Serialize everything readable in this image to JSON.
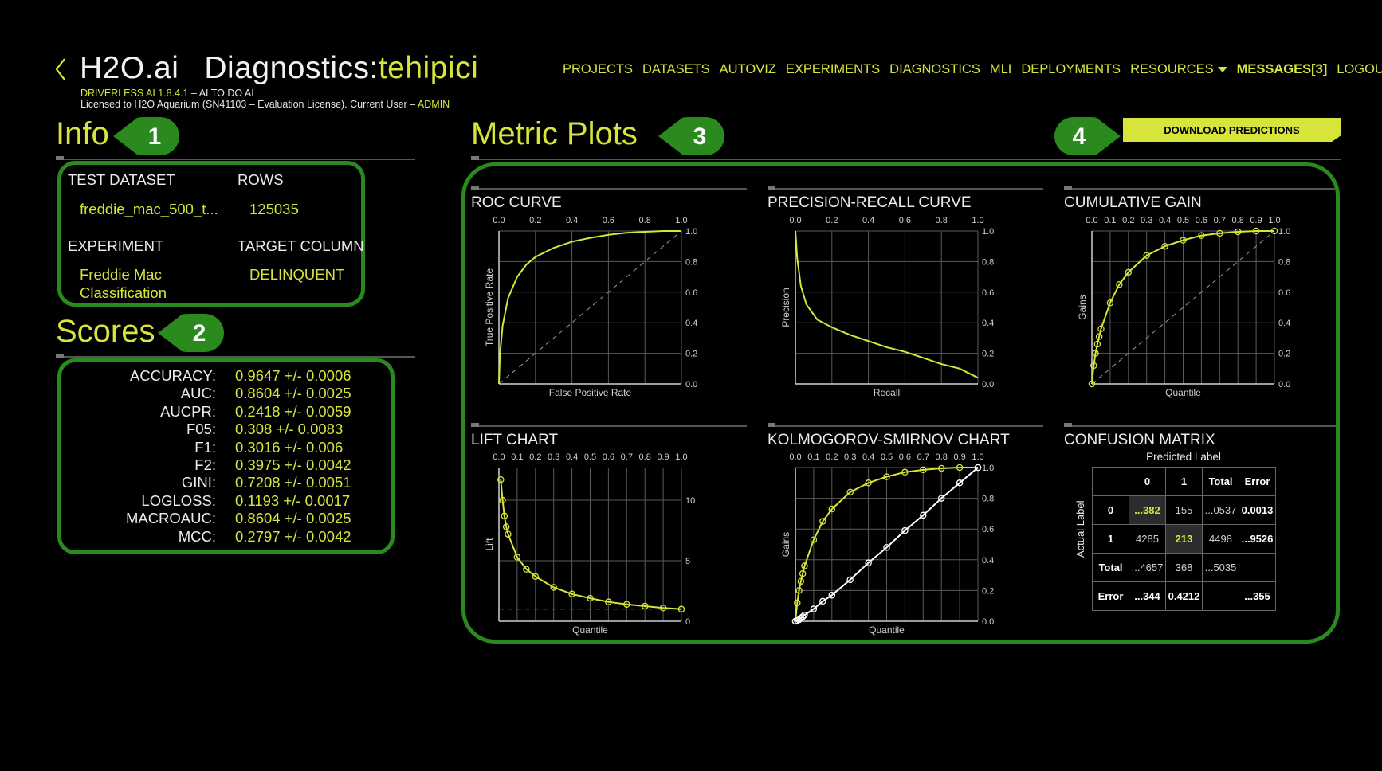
{
  "header": {
    "brand": "H2O.ai",
    "page_prefix": "Diagnostics:",
    "page_name": "tehipici",
    "version_line": "DRIVERLESS AI 1.8.4.1",
    "version_tagline": " – AI TO DO AI",
    "license_line": "Licensed to H2O Aquarium (SN41103 – Evaluation License). Current User – ",
    "user": "ADMIN"
  },
  "nav": {
    "items": [
      "PROJECTS",
      "DATASETS",
      "AUTOVIZ",
      "EXPERIMENTS",
      "DIAGNOSTICS",
      "MLI",
      "DEPLOYMENTS"
    ],
    "resources": "RESOURCES",
    "messages": "MESSAGES[3]",
    "logout": "LOGOUT"
  },
  "callouts": [
    "1",
    "2",
    "3",
    "4"
  ],
  "info": {
    "title": "Info",
    "test_dataset_label": "TEST DATASET",
    "test_dataset_value": "freddie_mac_500_t...",
    "rows_label": "ROWS",
    "rows_value": "125035",
    "experiment_label": "EXPERIMENT",
    "experiment_value_line1": "Freddie Mac",
    "experiment_value_line2": "Classification",
    "target_label": "TARGET COLUMN",
    "target_value": "DELINQUENT"
  },
  "scores": {
    "title": "Scores",
    "rows": [
      {
        "name": "ACCURACY:",
        "value": "0.9647 +/- 0.0006"
      },
      {
        "name": "AUC:",
        "value": "0.8604 +/- 0.0025"
      },
      {
        "name": "AUCPR:",
        "value": "0.2418 +/- 0.0059"
      },
      {
        "name": "F05:",
        "value": "0.308 +/- 0.0083"
      },
      {
        "name": "F1:",
        "value": "0.3016 +/- 0.006"
      },
      {
        "name": "F2:",
        "value": "0.3975 +/- 0.0042"
      },
      {
        "name": "GINI:",
        "value": "0.7208 +/- 0.0051"
      },
      {
        "name": "LOGLOSS:",
        "value": "0.1193 +/- 0.0017"
      },
      {
        "name": "MACROAUC:",
        "value": "0.8604 +/- 0.0025"
      },
      {
        "name": "MCC:",
        "value": "0.2797 +/- 0.0042"
      }
    ]
  },
  "metric_plots": {
    "title": "Metric Plots",
    "download_label": "DOWNLOAD PREDICTIONS"
  },
  "colors": {
    "accent": "#d7e43a",
    "callout_green": "#2a8a1e",
    "background": "#000000"
  },
  "chart_data": [
    {
      "type": "line",
      "title": "ROC CURVE",
      "xlabel": "False Positive Rate",
      "ylabel": "True Positive Rate",
      "xlim": [
        0,
        1
      ],
      "ylim": [
        0,
        1
      ],
      "x_ticks": [
        "0.0",
        "0.2",
        "0.4",
        "0.6",
        "0.8",
        "1.0"
      ],
      "y_ticks": [
        "0.0",
        "0.2",
        "0.4",
        "0.6",
        "0.8",
        "1.0"
      ],
      "series": [
        {
          "x": [
            0,
            0.005,
            0.02,
            0.05,
            0.1,
            0.15,
            0.2,
            0.3,
            0.4,
            0.5,
            0.6,
            0.7,
            0.8,
            0.9,
            1.0
          ],
          "y": [
            0,
            0.18,
            0.38,
            0.56,
            0.7,
            0.78,
            0.83,
            0.89,
            0.93,
            0.955,
            0.975,
            0.988,
            0.995,
            1.0,
            1.0
          ]
        }
      ],
      "diagonal": true
    },
    {
      "type": "line",
      "title": "PRECISION-RECALL CURVE",
      "xlabel": "Recall",
      "ylabel": "Precision",
      "xlim": [
        0,
        1
      ],
      "ylim": [
        0,
        1
      ],
      "x_ticks": [
        "0.0",
        "0.2",
        "0.4",
        "0.6",
        "0.8",
        "1.0"
      ],
      "y_ticks": [
        "0.0",
        "0.2",
        "0.4",
        "0.6",
        "0.8",
        "1.0"
      ],
      "series": [
        {
          "x": [
            0,
            0.01,
            0.03,
            0.06,
            0.12,
            0.2,
            0.3,
            0.4,
            0.5,
            0.6,
            0.7,
            0.8,
            0.9,
            1.0
          ],
          "y": [
            1.0,
            0.82,
            0.64,
            0.52,
            0.42,
            0.37,
            0.32,
            0.28,
            0.24,
            0.21,
            0.17,
            0.13,
            0.1,
            0.04
          ]
        }
      ]
    },
    {
      "type": "line",
      "title": "CUMULATIVE GAIN",
      "xlabel": "Quantile",
      "ylabel": "Gains",
      "xlim": [
        0,
        1
      ],
      "ylim": [
        0,
        1
      ],
      "x_ticks": [
        "0.0",
        "0.1",
        "0.2",
        "0.3",
        "0.4",
        "0.5",
        "0.6",
        "0.7",
        "0.8",
        "0.9",
        "1.0"
      ],
      "y_ticks": [
        "0.0",
        "0.2",
        "0.4",
        "0.6",
        "0.8",
        "1.0"
      ],
      "series": [
        {
          "x": [
            0,
            0.01,
            0.02,
            0.03,
            0.04,
            0.05,
            0.1,
            0.15,
            0.2,
            0.3,
            0.4,
            0.5,
            0.6,
            0.7,
            0.8,
            0.9,
            1.0
          ],
          "y": [
            0,
            0.12,
            0.2,
            0.26,
            0.31,
            0.36,
            0.53,
            0.65,
            0.73,
            0.84,
            0.9,
            0.94,
            0.97,
            0.985,
            0.995,
            1.0,
            1.0
          ]
        }
      ],
      "diagonal": true
    },
    {
      "type": "line",
      "title": "LIFT CHART",
      "xlabel": "Quantile",
      "ylabel": "Lift",
      "xlim": [
        0,
        1
      ],
      "ylim": [
        0,
        12.7
      ],
      "x_ticks": [
        "0.0",
        "0.1",
        "0.2",
        "0.3",
        "0.4",
        "0.5",
        "0.6",
        "0.7",
        "0.8",
        "0.9",
        "1.0"
      ],
      "y_ticks": [
        "0",
        "5",
        "10"
      ],
      "series": [
        {
          "x": [
            0.01,
            0.02,
            0.03,
            0.04,
            0.05,
            0.1,
            0.15,
            0.2,
            0.3,
            0.4,
            0.5,
            0.6,
            0.7,
            0.8,
            0.9,
            1.0
          ],
          "y": [
            11.7,
            10.0,
            8.7,
            7.8,
            7.2,
            5.3,
            4.3,
            3.7,
            2.8,
            2.25,
            1.9,
            1.6,
            1.4,
            1.25,
            1.1,
            1.0
          ]
        }
      ],
      "baseline": 1
    },
    {
      "type": "line",
      "title": "KOLMOGOROV-SMIRNOV CHART",
      "xlabel": "Quantile",
      "ylabel": "Gains",
      "xlim": [
        0,
        1
      ],
      "ylim": [
        0,
        1
      ],
      "x_ticks": [
        "0.0",
        "0.1",
        "0.2",
        "0.3",
        "0.4",
        "0.5",
        "0.6",
        "0.7",
        "0.8",
        "0.9",
        "1.0"
      ],
      "y_ticks": [
        "0.0",
        "0.2",
        "0.4",
        "0.6",
        "0.8",
        "1.0"
      ],
      "series": [
        {
          "x": [
            0,
            0.01,
            0.02,
            0.03,
            0.04,
            0.05,
            0.1,
            0.15,
            0.2,
            0.3,
            0.4,
            0.5,
            0.6,
            0.7,
            0.8,
            0.9,
            1.0
          ],
          "y": [
            0,
            0.12,
            0.2,
            0.26,
            0.31,
            0.36,
            0.53,
            0.65,
            0.73,
            0.84,
            0.9,
            0.94,
            0.97,
            0.985,
            0.995,
            1.0,
            1.0
          ],
          "color": "#d7e43a"
        },
        {
          "x": [
            0,
            0.01,
            0.02,
            0.03,
            0.04,
            0.05,
            0.1,
            0.15,
            0.2,
            0.3,
            0.4,
            0.5,
            0.6,
            0.7,
            0.8,
            0.9,
            1.0
          ],
          "y": [
            0,
            0.005,
            0.01,
            0.02,
            0.03,
            0.04,
            0.08,
            0.13,
            0.17,
            0.27,
            0.38,
            0.48,
            0.59,
            0.69,
            0.8,
            0.9,
            1.0
          ],
          "color": "#ffffff"
        }
      ]
    },
    {
      "type": "table",
      "title": "CONFUSION MATRIX",
      "xlabel": "Predicted Label",
      "ylabel": "Actual Label",
      "header": [
        "",
        "0",
        "1",
        "Total",
        "Error"
      ],
      "rows": [
        [
          "0",
          "...382",
          "155",
          "...0537",
          "0.0013"
        ],
        [
          "1",
          "4285",
          "213",
          "4498",
          "...9526"
        ],
        [
          "Total",
          "...4657",
          "368",
          "...5035",
          ""
        ],
        [
          "Error",
          "...344",
          "0.4212",
          "",
          "...355"
        ]
      ]
    }
  ]
}
